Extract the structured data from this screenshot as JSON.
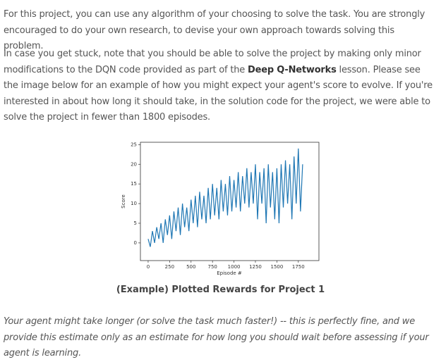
{
  "paragraphs": [
    {
      "text": "For this project, you can use any algorithm of your choosing to solve the task. You are strongly encouraged to do your own research, to devise your own approach towards solving this problem."
    },
    {
      "before": "In case you get stuck, note that you should be able to solve the project by making only minor modifications to the DQN code provided as part of the ",
      "bold": "Deep Q-Networks",
      "after": " lesson. Please see the image below for an example of how you might expect your agent's score to evolve. If you're interested in about how long it should take, in the solution code for the project, we were able to solve the project in fewer than 1800 episodes."
    }
  ],
  "chart_data": {
    "type": "line",
    "xlabel": "Episode #",
    "ylabel": "Score",
    "color": "#1f77b4",
    "x": [
      0,
      25,
      50,
      75,
      100,
      125,
      150,
      175,
      200,
      225,
      250,
      275,
      300,
      325,
      350,
      375,
      400,
      425,
      450,
      475,
      500,
      525,
      550,
      575,
      600,
      625,
      650,
      675,
      700,
      725,
      750,
      775,
      800,
      825,
      850,
      875,
      900,
      925,
      950,
      975,
      1000,
      1025,
      1050,
      1075,
      1100,
      1125,
      1150,
      1175,
      1200,
      1225,
      1250,
      1275,
      1300,
      1325,
      1350,
      1375,
      1400,
      1425,
      1450,
      1475,
      1500,
      1525,
      1550,
      1575,
      1600,
      1625,
      1650,
      1675,
      1700,
      1725,
      1750,
      1775,
      1800
    ],
    "values": [
      1,
      -1,
      3,
      0,
      4,
      1,
      5,
      0,
      6,
      2,
      7,
      1,
      8,
      3,
      9,
      2,
      10,
      4,
      9,
      3,
      11,
      5,
      12,
      4,
      13,
      6,
      12,
      5,
      14,
      6,
      15,
      7,
      14,
      6,
      16,
      8,
      15,
      7,
      17,
      8,
      16,
      9,
      18,
      8,
      17,
      10,
      19,
      9,
      18,
      10,
      20,
      6,
      18,
      10,
      19,
      5,
      20,
      9,
      18,
      6,
      19,
      5,
      20,
      9,
      21,
      10,
      20,
      6,
      22,
      10,
      24,
      8,
      20
    ],
    "xlim": [
      -90,
      1990
    ],
    "ylim": [
      -4.5,
      25.6
    ],
    "xticks": [
      0,
      250,
      500,
      750,
      1000,
      1250,
      1500,
      1750
    ],
    "yticks": [
      0,
      5,
      10,
      15,
      20,
      25
    ]
  },
  "caption": "(Example) Plotted Rewards for Project 1",
  "note": "Your agent might take longer (or solve the task much faster!) -- this is perfectly fine, and we provide this estimate only as an estimate for how long you should wait before assessing if your agent is learning."
}
